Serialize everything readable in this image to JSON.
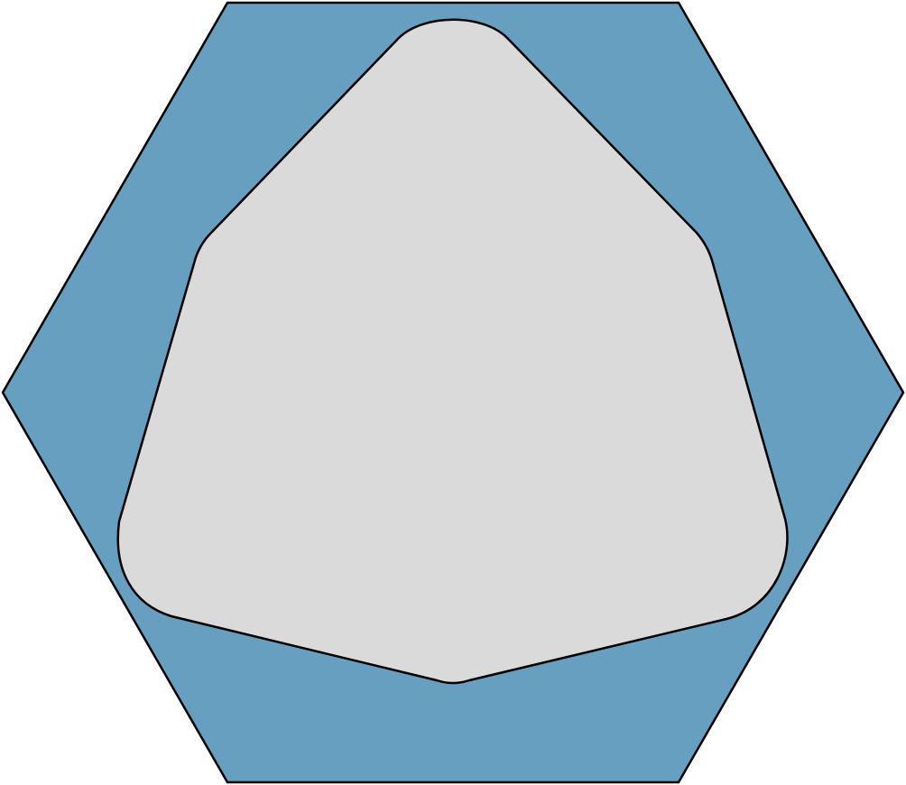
{
  "shapes": {
    "outer_hexagon": {
      "fill": "#669fc0",
      "stroke": "#000000"
    },
    "inner_rounded_pentagon": {
      "fill": "#dadada",
      "stroke": "#000000"
    }
  }
}
